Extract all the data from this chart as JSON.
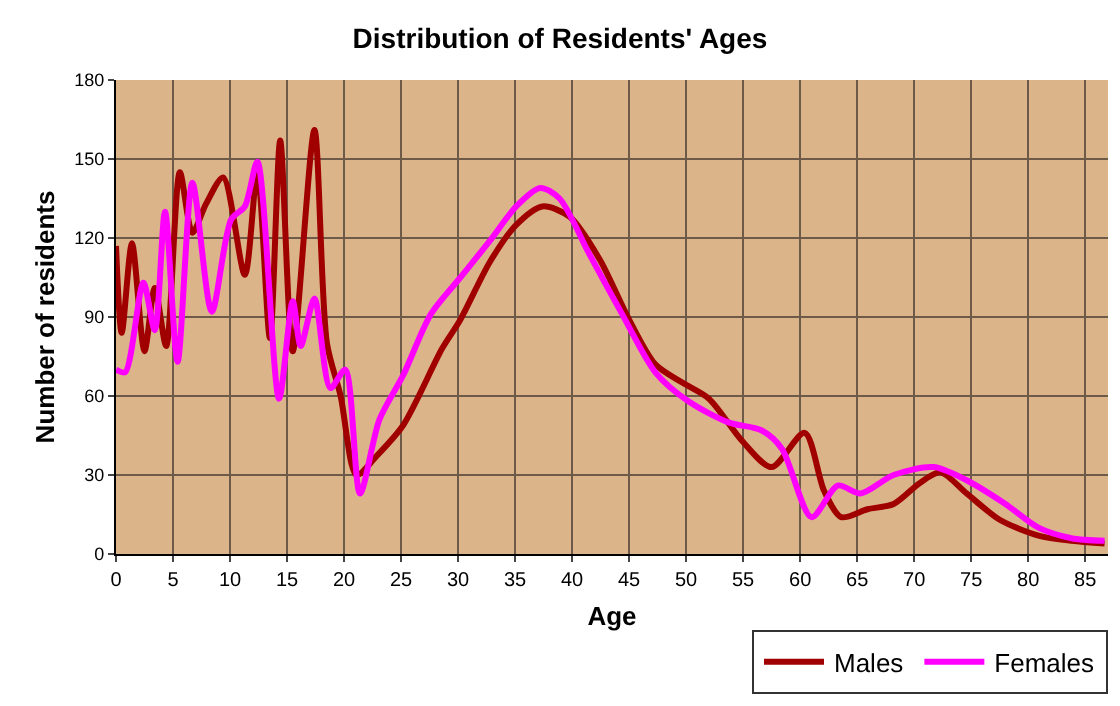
{
  "chart_data": {
    "type": "line",
    "title": "Distribution of Residents' Ages",
    "xlabel": "Age",
    "ylabel": "Number of residents",
    "xlim": [
      0,
      87
    ],
    "xticks": [
      0,
      5,
      10,
      15,
      20,
      25,
      30,
      35,
      40,
      45,
      50,
      55,
      60,
      65,
      70,
      75,
      80,
      85
    ],
    "ylim": [
      0,
      180
    ],
    "yticks": [
      0,
      30,
      60,
      90,
      120,
      150,
      180
    ],
    "grid": true,
    "legend": "bottom right",
    "marker": "none",
    "line_style": "solid",
    "series": [
      {
        "name": "Males",
        "color": "#a00000",
        "x": [
          0,
          0.5,
          1.4,
          2.5,
          3.4,
          4.4,
          5.6,
          6.7,
          7.9,
          9.4,
          11.3,
          12.4,
          13.5,
          14.4,
          15.5,
          17.4,
          18.5,
          19.7,
          21.1,
          22.8,
          25.2,
          28.6,
          30.2,
          32.8,
          35.1,
          37.4,
          39.8,
          42.4,
          45,
          47.3,
          49.7,
          52,
          54.9,
          57.5,
          60.4,
          62.1,
          63.6,
          65.9,
          68.2,
          70.5,
          72.3,
          74.6,
          77.5,
          80.9,
          83.8,
          86.7
        ],
        "values": [
          117,
          84,
          118,
          77,
          101,
          79,
          145,
          122,
          133,
          143,
          106,
          145,
          82,
          157,
          77,
          161,
          80,
          60,
          30,
          37,
          49,
          78,
          89,
          111,
          125,
          132,
          128,
          112,
          89,
          72,
          65,
          59,
          43,
          33,
          46,
          24,
          14,
          17,
          19,
          27,
          31,
          23,
          13,
          7,
          5,
          4
        ]
      },
      {
        "name": "Females",
        "color": "#ff00ff",
        "x": [
          0,
          0.8,
          2.4,
          3.4,
          4.3,
          5.4,
          6.7,
          8.4,
          10.1,
          11.3,
          12.4,
          14.3,
          15.5,
          16.2,
          17.4,
          18.8,
          20.1,
          21.4,
          23.1,
          25.2,
          27.6,
          30.2,
          32.8,
          35.1,
          37.2,
          38.9,
          41.5,
          44.4,
          47.3,
          50.2,
          53.7,
          56.6,
          58.4,
          61,
          63.3,
          65.3,
          68.2,
          71.7,
          74.6,
          78,
          80.9,
          83.8,
          86.7
        ],
        "values": [
          70,
          69,
          103,
          85,
          130,
          73,
          141,
          92,
          127,
          132,
          149,
          59,
          96,
          79,
          97,
          63,
          70,
          23,
          51,
          68,
          91,
          105,
          119,
          132,
          139,
          135,
          114,
          91,
          69,
          58,
          50,
          47,
          40,
          14,
          26,
          23,
          30,
          33,
          28,
          19,
          10,
          6,
          5
        ]
      }
    ]
  }
}
